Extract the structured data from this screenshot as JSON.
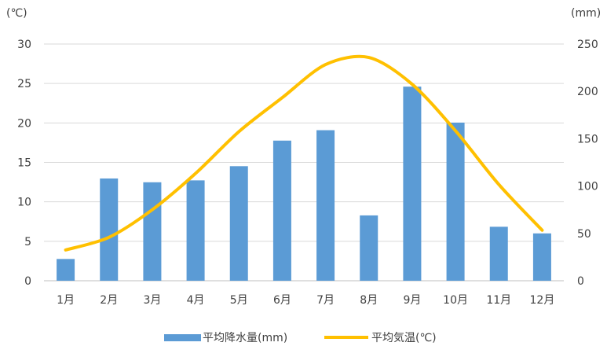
{
  "chart_data": {
    "type": "bar",
    "categories": [
      "1月",
      "2月",
      "3月",
      "4月",
      "5月",
      "6月",
      "7月",
      "8月",
      "9月",
      "10月",
      "11月",
      "12月"
    ],
    "series": [
      {
        "name": "平均降水量(mm)",
        "type": "bar",
        "axis": "right",
        "color": "#5B9BD5",
        "values": [
          23,
          108,
          104,
          106,
          121,
          148,
          159,
          69,
          205,
          167,
          57,
          50
        ]
      },
      {
        "name": "平均気温(℃)",
        "type": "line",
        "axis": "left",
        "color": "#FFC000",
        "values": [
          3.9,
          5.5,
          9.0,
          13.6,
          18.9,
          23.2,
          27.4,
          28.3,
          24.9,
          19.0,
          12.2,
          6.4
        ]
      }
    ],
    "y_left": {
      "label": "(℃)",
      "ticks": [
        0,
        5,
        10,
        15,
        20,
        25,
        30
      ],
      "ylim": [
        0,
        30
      ]
    },
    "y_right": {
      "label": "(mm)",
      "ticks": [
        0,
        50,
        100,
        150,
        200,
        250
      ],
      "ylim": [
        0,
        250
      ]
    },
    "grid": true,
    "legend_position": "bottom",
    "title": ""
  }
}
